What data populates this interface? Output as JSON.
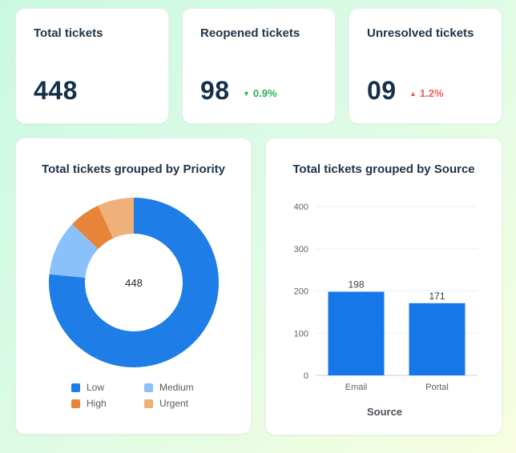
{
  "kpis": [
    {
      "title": "Total tickets",
      "value": "448"
    },
    {
      "title": "Reopened tickets",
      "value": "98",
      "delta": "0.9%",
      "direction": "down",
      "delta_color": "#2bb24c"
    },
    {
      "title": "Unresolved tickets",
      "value": "09",
      "delta": "1.2%",
      "direction": "up",
      "delta_color": "#ef5b5b"
    }
  ],
  "icons": {
    "down": "▼",
    "up": "▲"
  },
  "chart_data": [
    {
      "type": "pie",
      "variant": "donut",
      "title": "Total tickets grouped by Priority",
      "center_label": "448",
      "categories": [
        "Low",
        "Medium",
        "High",
        "Urgent"
      ],
      "values": [
        343,
        47,
        27,
        31
      ],
      "colors": [
        "#1e7de6",
        "#8bc1fb",
        "#e8843a",
        "#f0b07a"
      ],
      "legend_position": "bottom",
      "legend_order": [
        "Low",
        "Medium",
        "High",
        "Urgent"
      ]
    },
    {
      "type": "bar",
      "title": "Total tickets grouped by Source",
      "categories": [
        "Email",
        "Portal"
      ],
      "values": [
        198,
        171
      ],
      "data_labels": [
        "198",
        "171"
      ],
      "xlabel": "Source",
      "ylabel": "",
      "ylim": [
        0,
        400
      ],
      "yticks": [
        "0",
        "100",
        "200",
        "300",
        "400"
      ],
      "grid": true,
      "color": "#1677e8"
    }
  ]
}
